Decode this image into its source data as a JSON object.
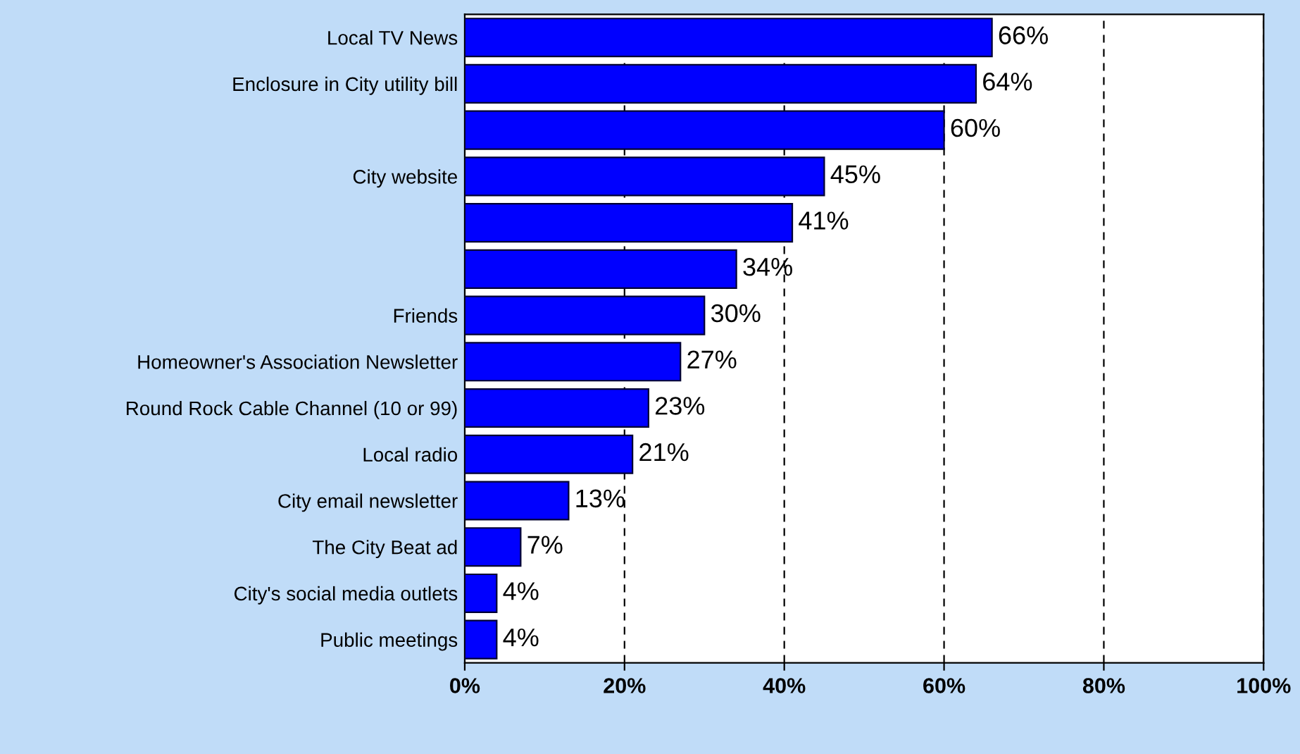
{
  "chart_data": {
    "type": "bar",
    "orientation": "horizontal",
    "categories": [
      "Local TV News",
      "Enclosure in City utility bill",
      null,
      "City website",
      null,
      null,
      "Friends",
      "Homeowner's Association Newsletter",
      "Round Rock Cable Channel (10 or 99)",
      "Local radio",
      "City email newsletter",
      "The City Beat ad",
      "City's social media outlets",
      "Public meetings"
    ],
    "values": [
      66,
      64,
      60,
      45,
      41,
      34,
      30,
      27,
      23,
      21,
      13,
      7,
      4,
      4
    ],
    "value_labels": [
      "66%",
      "64%",
      "60%",
      "45%",
      "41%",
      "34%",
      "30%",
      "27%",
      "23%",
      "21%",
      "13%",
      "7%",
      "4%",
      "4%"
    ],
    "color": "#0000ff",
    "xlim": [
      0,
      100
    ],
    "xticks": [
      {
        "value": 0,
        "label": "0%"
      },
      {
        "value": 20,
        "label": "20%"
      },
      {
        "value": 40,
        "label": "40%"
      },
      {
        "value": 60,
        "label": "60%"
      },
      {
        "value": 80,
        "label": "80%"
      },
      {
        "value": 100,
        "label": "100%"
      }
    ],
    "grid": "x",
    "line_style": "dashed",
    "legend": false
  }
}
